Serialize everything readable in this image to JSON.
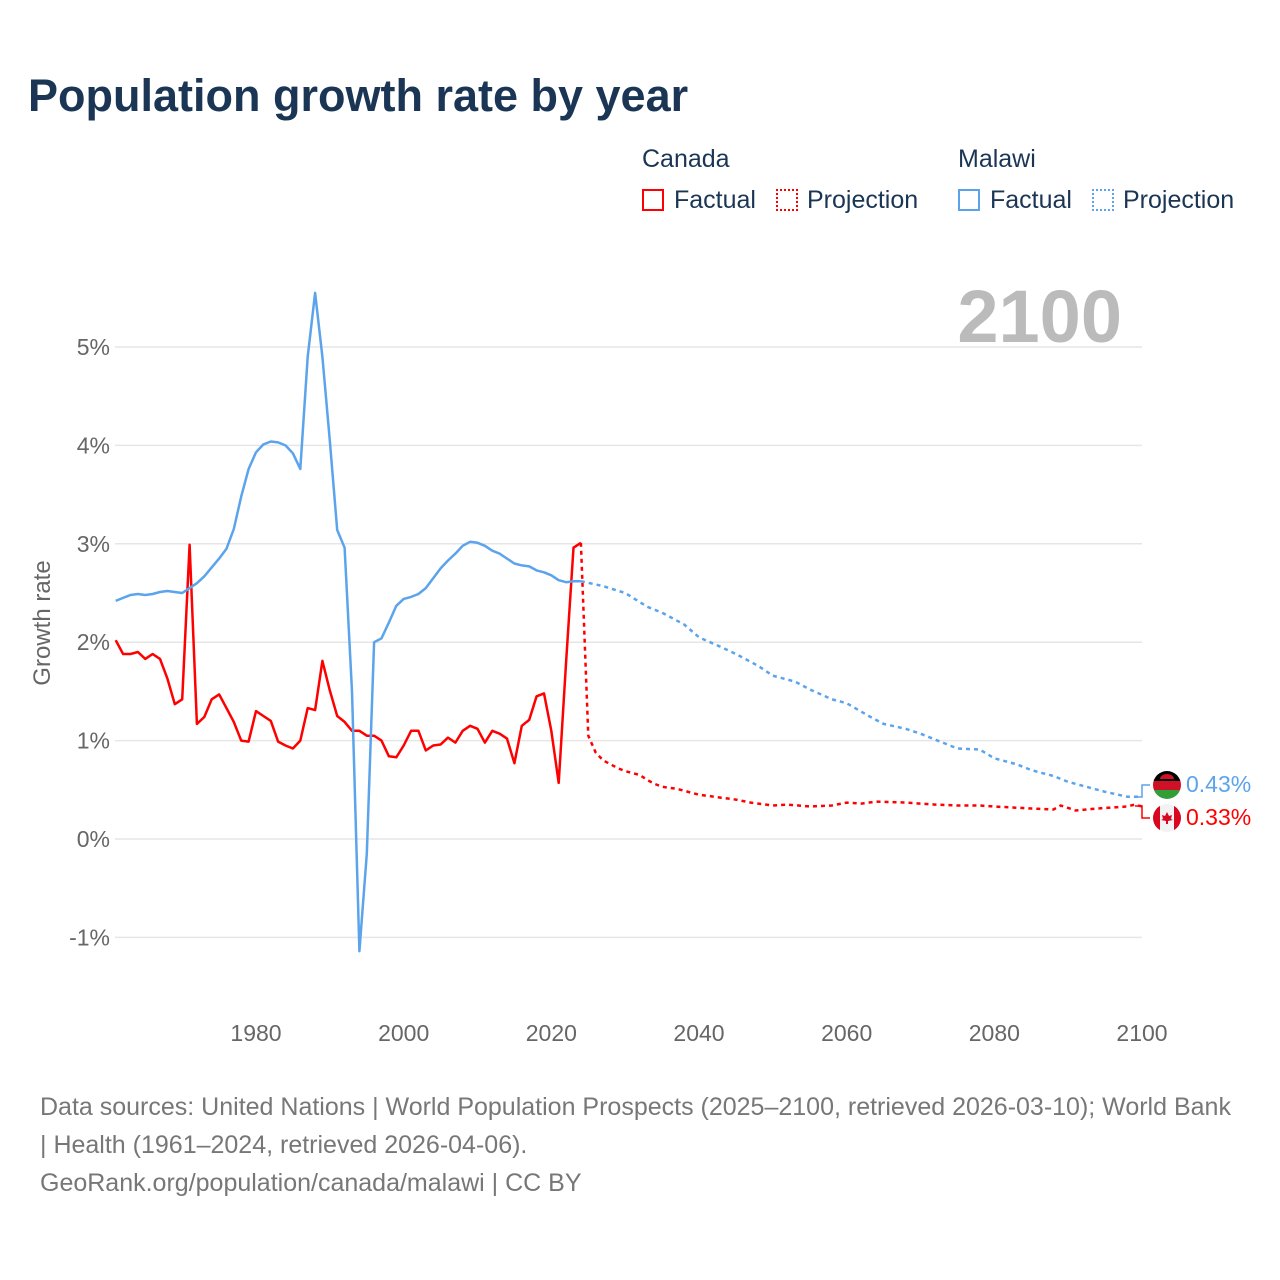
{
  "title": "Population growth rate by year",
  "legend": {
    "groups": [
      {
        "country": "Canada",
        "factual": "Factual",
        "projection": "Projection",
        "color": "#ff0000"
      },
      {
        "country": "Malawi",
        "factual": "Factual",
        "projection": "Projection",
        "color": "#5ba4ec"
      }
    ]
  },
  "year_display": "2100",
  "end_labels": {
    "malawi": "0.43%",
    "canada": "0.33%"
  },
  "footer": {
    "sources": "Data sources: United Nations | World Population Prospects (2025–2100, retrieved 2026-03-10); World Bank | Health (1961–2024, retrieved 2026-04-06).",
    "credit": "GeoRank.org/population/canada/malawi | CC BY"
  },
  "chart_data": {
    "type": "line",
    "title": "Population growth rate by year",
    "xlabel": "",
    "ylabel": "Growth rate",
    "xlim": [
      1961,
      2100
    ],
    "ylim": [
      -1.6,
      5.8
    ],
    "yticks": [
      -1,
      0,
      1,
      2,
      3,
      4,
      5
    ],
    "ytick_labels": [
      "-1%",
      "0%",
      "1%",
      "2%",
      "3%",
      "4%",
      "5%"
    ],
    "xticks": [
      1980,
      2000,
      2020,
      2040,
      2060,
      2080,
      2100
    ],
    "xtick_labels": [
      "1980",
      "2000",
      "2020",
      "2040",
      "2060",
      "2080",
      "2100"
    ],
    "grid": true,
    "legend_position": "top-right",
    "series": [
      {
        "name": "Canada Factual",
        "color": "#ff0000",
        "dash": false,
        "x": [
          1961,
          1962,
          1963,
          1964,
          1965,
          1966,
          1967,
          1968,
          1969,
          1970,
          1971,
          1972,
          1973,
          1974,
          1975,
          1976,
          1977,
          1978,
          1979,
          1980,
          1981,
          1982,
          1983,
          1984,
          1985,
          1986,
          1987,
          1988,
          1989,
          1990,
          1991,
          1992,
          1993,
          1994,
          1995,
          1996,
          1997,
          1998,
          1999,
          2000,
          2001,
          2002,
          2003,
          2004,
          2005,
          2006,
          2007,
          2008,
          2009,
          2010,
          2011,
          2012,
          2013,
          2014,
          2015,
          2016,
          2017,
          2018,
          2019,
          2020,
          2021,
          2022,
          2023,
          2024
        ],
        "y": [
          2.02,
          1.88,
          1.88,
          1.9,
          1.83,
          1.88,
          1.83,
          1.63,
          1.37,
          1.42,
          2.99,
          1.17,
          1.24,
          1.42,
          1.47,
          1.33,
          1.19,
          1.0,
          0.99,
          1.3,
          1.25,
          1.2,
          0.99,
          0.95,
          0.92,
          1.0,
          1.33,
          1.31,
          1.81,
          1.51,
          1.25,
          1.19,
          1.1,
          1.1,
          1.05,
          1.05,
          1.0,
          0.84,
          0.83,
          0.95,
          1.1,
          1.1,
          0.9,
          0.95,
          0.96,
          1.03,
          0.98,
          1.1,
          1.15,
          1.12,
          0.98,
          1.1,
          1.07,
          1.02,
          0.77,
          1.15,
          1.21,
          1.45,
          1.48,
          1.1,
          0.57,
          1.8,
          2.96,
          3.01
        ]
      },
      {
        "name": "Canada Projection",
        "color": "#ff0000",
        "dash": true,
        "x": [
          2024,
          2025,
          2026,
          2027,
          2028,
          2029,
          2030,
          2031,
          2032,
          2033,
          2034,
          2035,
          2036,
          2037,
          2038,
          2039,
          2040,
          2043,
          2045,
          2047,
          2050,
          2052,
          2055,
          2058,
          2060,
          2062,
          2064,
          2068,
          2072,
          2075,
          2078,
          2080,
          2085,
          2088,
          2089,
          2091,
          2094,
          2098,
          2099,
          2100
        ],
        "y": [
          3.01,
          1.05,
          0.88,
          0.8,
          0.76,
          0.72,
          0.69,
          0.67,
          0.65,
          0.6,
          0.56,
          0.53,
          0.52,
          0.51,
          0.49,
          0.47,
          0.45,
          0.42,
          0.4,
          0.37,
          0.34,
          0.35,
          0.33,
          0.34,
          0.37,
          0.36,
          0.38,
          0.37,
          0.35,
          0.34,
          0.34,
          0.33,
          0.31,
          0.3,
          0.34,
          0.29,
          0.31,
          0.33,
          0.35,
          0.33
        ]
      },
      {
        "name": "Malawi Factual",
        "color": "#5ba4ec",
        "dash": false,
        "x": [
          1961,
          1962,
          1963,
          1964,
          1965,
          1966,
          1967,
          1968,
          1969,
          1970,
          1971,
          1972,
          1973,
          1974,
          1975,
          1976,
          1977,
          1978,
          1979,
          1980,
          1981,
          1982,
          1983,
          1984,
          1985,
          1986,
          1987,
          1988,
          1989,
          1990,
          1991,
          1992,
          1993,
          1994,
          1995,
          1996,
          1997,
          1998,
          1999,
          2000,
          2001,
          2002,
          2003,
          2004,
          2005,
          2006,
          2007,
          2008,
          2009,
          2010,
          2011,
          2012,
          2013,
          2014,
          2015,
          2016,
          2017,
          2018,
          2019,
          2020,
          2021,
          2022,
          2023,
          2024
        ],
        "y": [
          2.42,
          2.45,
          2.48,
          2.49,
          2.48,
          2.49,
          2.51,
          2.52,
          2.51,
          2.5,
          2.55,
          2.6,
          2.67,
          2.76,
          2.85,
          2.95,
          3.15,
          3.48,
          3.76,
          3.93,
          4.01,
          4.04,
          4.03,
          4.0,
          3.92,
          3.76,
          4.9,
          5.55,
          4.9,
          4.05,
          3.14,
          2.96,
          1.5,
          -1.14,
          -0.15,
          2.0,
          2.04,
          2.2,
          2.37,
          2.44,
          2.46,
          2.49,
          2.55,
          2.65,
          2.75,
          2.83,
          2.9,
          2.98,
          3.02,
          3.01,
          2.98,
          2.93,
          2.9,
          2.85,
          2.8,
          2.78,
          2.77,
          2.73,
          2.71,
          2.68,
          2.63,
          2.61,
          2.62,
          2.62
        ]
      },
      {
        "name": "Malawi Projection",
        "color": "#5ba4ec",
        "dash": true,
        "x": [
          2024,
          2027,
          2030,
          2033,
          2035,
          2038,
          2040,
          2043,
          2045,
          2048,
          2050,
          2053,
          2055,
          2058,
          2060,
          2063,
          2065,
          2068,
          2070,
          2073,
          2075,
          2078,
          2080,
          2083,
          2085,
          2088,
          2090,
          2093,
          2095,
          2098,
          2100
        ],
        "y": [
          2.62,
          2.57,
          2.5,
          2.36,
          2.3,
          2.18,
          2.05,
          1.95,
          1.88,
          1.76,
          1.66,
          1.6,
          1.52,
          1.42,
          1.38,
          1.25,
          1.17,
          1.12,
          1.07,
          0.98,
          0.92,
          0.91,
          0.82,
          0.76,
          0.7,
          0.64,
          0.58,
          0.52,
          0.48,
          0.43,
          0.43
        ]
      }
    ]
  }
}
